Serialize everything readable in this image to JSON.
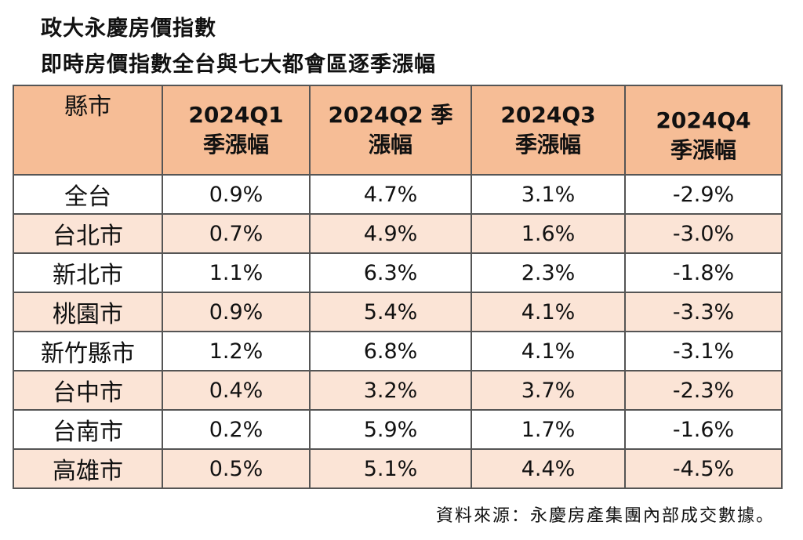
{
  "title_line1": "政大永慶房價指數",
  "title_line2": "即時房價指數全台與七大都會區逐季漲幅",
  "chart_data": {
    "type": "table",
    "columns": [
      "縣市",
      "2024Q1 季漲幅",
      "2024Q2 季 漲幅",
      "2024Q3 季漲幅",
      "2024Q4 季漲幅"
    ],
    "header_lines": [
      [
        "縣市"
      ],
      [
        "2024Q1",
        "季漲幅"
      ],
      [
        "2024Q2 季",
        "漲幅"
      ],
      [
        "2024Q3",
        "季漲幅"
      ],
      [
        "2024Q4",
        "季漲幅"
      ]
    ],
    "rows": [
      [
        "全台",
        "0.9%",
        "4.7%",
        "3.1%",
        "-2.9%"
      ],
      [
        "台北市",
        "0.7%",
        "4.9%",
        "1.6%",
        "-3.0%"
      ],
      [
        "新北市",
        "1.1%",
        "6.3%",
        "2.3%",
        "-1.8%"
      ],
      [
        "桃園市",
        "0.9%",
        "5.4%",
        "4.1%",
        "-3.3%"
      ],
      [
        "新竹縣市",
        "1.2%",
        "6.8%",
        "4.1%",
        "-3.1%"
      ],
      [
        "台中市",
        "0.4%",
        "3.2%",
        "3.7%",
        "-2.3%"
      ],
      [
        "台南市",
        "0.2%",
        "5.9%",
        "1.7%",
        "-1.6%"
      ],
      [
        "高雄市",
        "0.5%",
        "5.1%",
        "4.4%",
        "-4.5%"
      ]
    ],
    "colors": {
      "header": "#f6bd96",
      "stripe": "#fbe4d6",
      "border": "#555555"
    }
  },
  "source": "資料來源：永慶房產集團內部成交數據。"
}
